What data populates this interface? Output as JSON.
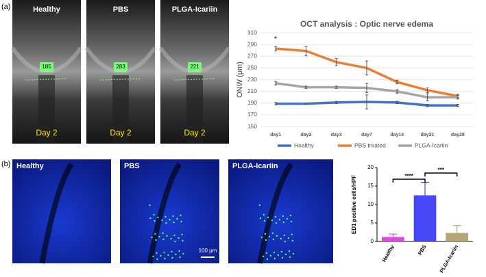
{
  "panels": {
    "a": "(a)",
    "b": "(b)",
    "oct": [
      {
        "label": "Healthy",
        "measure": "185",
        "day": "Day 2"
      },
      {
        "label": "PBS",
        "measure": "283",
        "day": "Day 2"
      },
      {
        "label": "PLGA-Icariin",
        "measure": "221",
        "day": "Day 2"
      }
    ],
    "fluor": [
      "Healthy",
      "PBS",
      "PLGA-Icariin"
    ],
    "scale_bar": "100 μm"
  },
  "chart_data": [
    {
      "type": "line",
      "title": "OCT analysis : Optic nerve edema",
      "y_label": "ONW (μm)",
      "categories": [
        "day1",
        "day2",
        "day3",
        "day7",
        "day14",
        "day21",
        "day28"
      ],
      "series": [
        {
          "name": "Healthy",
          "color": "#4472c4",
          "values": [
            189,
            189,
            191,
            192,
            191,
            186,
            186
          ],
          "errors": [
            2,
            1,
            2,
            12,
            2,
            2,
            2
          ]
        },
        {
          "name": "PBS treated",
          "color": "#ed7d31",
          "values": [
            283,
            279,
            260,
            250,
            226,
            212,
            202
          ],
          "errors": [
            4,
            8,
            6,
            12,
            3,
            4,
            3
          ]
        },
        {
          "name": "PLGA-Icariin",
          "color": "#a5a5a5",
          "values": [
            224,
            217,
            217,
            216,
            210,
            200,
            200
          ],
          "errors": [
            3,
            2,
            2,
            8,
            3,
            6,
            3
          ]
        }
      ],
      "annotations": [
        "*"
      ],
      "ylim": [
        150,
        310
      ],
      "yticks": [
        150,
        170,
        190,
        210,
        230,
        250,
        270,
        290,
        310
      ],
      "grid": true,
      "legend": "bottom"
    },
    {
      "type": "bar",
      "y_label": "ED1 positive cells/HPF",
      "categories": [
        "Healthy",
        "PBS",
        "PLGA-Icariin"
      ],
      "values": [
        1.2,
        12.5,
        2.3
      ],
      "errors": [
        0.8,
        3.5,
        2.0
      ],
      "colors": [
        "#e048e0",
        "#4848f8",
        "#b4a678"
      ],
      "significance": [
        "****",
        "***"
      ],
      "ylim": [
        0,
        20
      ],
      "yticks": [
        0,
        5,
        10,
        15,
        20
      ]
    }
  ]
}
